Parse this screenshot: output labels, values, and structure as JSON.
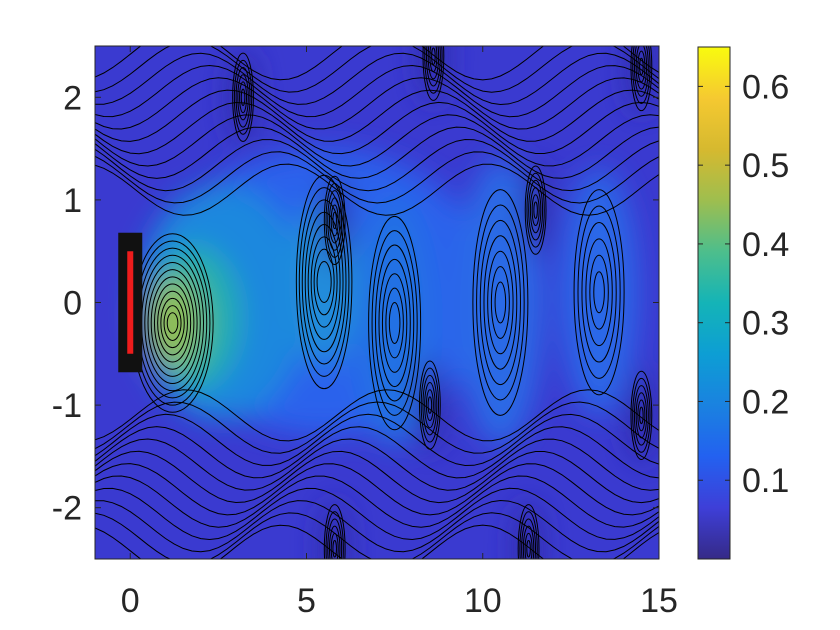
{
  "chart_data": {
    "type": "heatmap",
    "subtype": "filled-contour",
    "title": "",
    "xlabel": "",
    "ylabel": "",
    "xlim": [
      -1,
      15
    ],
    "ylim": [
      -2.5,
      2.5
    ],
    "x_ticks": [
      0,
      5,
      10,
      15
    ],
    "x_tick_labels": [
      "0",
      "5",
      "10",
      "15"
    ],
    "y_ticks": [
      2,
      1,
      0,
      -1,
      -2
    ],
    "y_tick_labels": [
      "2",
      "1",
      "0",
      "-1",
      "-2"
    ],
    "colorbar": {
      "colormap": "parula",
      "range": [
        0,
        0.65
      ],
      "ticks": [
        0.6,
        0.5,
        0.4,
        0.3,
        0.2,
        0.1
      ],
      "tick_labels": [
        "0.6",
        "0.5",
        "0.4",
        "0.3",
        "0.2",
        "0.1"
      ]
    },
    "grid": false,
    "contour_lines": true,
    "peak": {
      "x": 1.2,
      "y": -0.2,
      "value": 0.55
    },
    "vortices": [
      {
        "x": 3.2,
        "y": 2.0
      },
      {
        "x": 5.8,
        "y": 0.8
      },
      {
        "x": 5.8,
        "y": -2.4
      },
      {
        "x": 8.6,
        "y": 2.4
      },
      {
        "x": 8.5,
        "y": -1.0
      },
      {
        "x": 11.5,
        "y": 0.9
      },
      {
        "x": 11.3,
        "y": -2.4
      },
      {
        "x": 14.5,
        "y": -1.1
      },
      {
        "x": 14.5,
        "y": 2.3
      }
    ],
    "obstacle": {
      "x": 0,
      "y_range": [
        -0.5,
        0.5
      ],
      "color": "#ee1c1c"
    },
    "colors": {
      "background": "#3d3bd4",
      "obstacle": "#ee1c1c"
    }
  }
}
